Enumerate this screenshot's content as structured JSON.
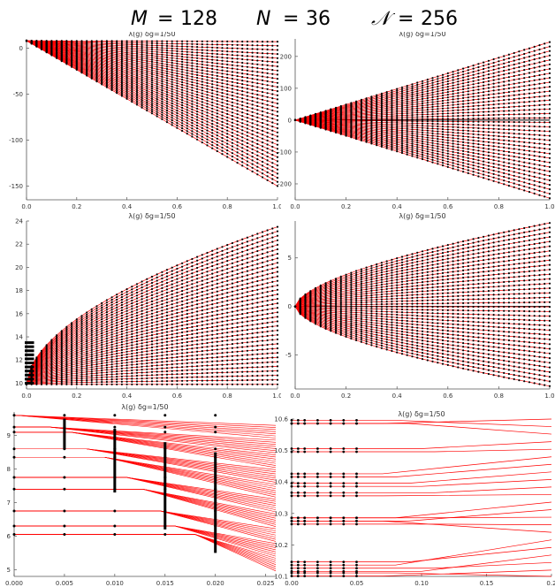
{
  "figure": {
    "title_parts": [
      {
        "sym": "M",
        "val": "128"
      },
      {
        "sym": "N",
        "val": "36"
      },
      {
        "sym": "𝒩",
        "val": "256"
      }
    ],
    "eq": "="
  },
  "colors": {
    "curve": "#ff0000",
    "point": "#000000",
    "axis": "#555555"
  },
  "chart_data": [
    {
      "type": "line",
      "panel_label": "λ(g)   δg=1/50",
      "xlim": [
        0,
        1
      ],
      "ylim": [
        -165,
        10
      ],
      "xticks": [
        0.0,
        0.2,
        0.4,
        0.6,
        0.8,
        1.0
      ],
      "xtick_labels": [
        "0.0",
        "0.2",
        "0.4",
        "0.6",
        "0.8",
        "1.0"
      ],
      "yticks": [
        0,
        -50,
        -100,
        -150
      ],
      "ytick_labels": [
        "0",
        "-50",
        "-100",
        "-150"
      ],
      "zero_line": false,
      "family": {
        "count": 36,
        "y0": 8,
        "slope_min": -1,
        "slope_max": -158,
        "power": 1,
        "dx": 0.02
      }
    },
    {
      "type": "line",
      "panel_label": "λ(g)   δg=1/50",
      "xlim": [
        0,
        1
      ],
      "ylim": [
        -250,
        255
      ],
      "xticks": [
        0.0,
        0.2,
        0.4,
        0.6,
        0.8,
        1.0
      ],
      "xtick_labels": [
        "0.0",
        "0.2",
        "0.4",
        "0.6",
        "0.8",
        "1.0"
      ],
      "yticks": [
        200,
        100,
        0,
        -100,
        -200
      ],
      "ytick_labels": [
        "200",
        "100",
        "0",
        "-100",
        "-200"
      ],
      "zero_line": true,
      "family": {
        "count": 36,
        "y0": 0,
        "slope_min": -245,
        "slope_max": 245,
        "power": 1,
        "dx": 0.02
      }
    },
    {
      "type": "line",
      "panel_label": "λ(g)   δg=1/50",
      "xlim": [
        0,
        1
      ],
      "ylim": [
        9.5,
        24
      ],
      "xticks": [
        0.0,
        0.2,
        0.4,
        0.6,
        0.8,
        1.0
      ],
      "xtick_labels": [
        "0.0",
        "0.2",
        "0.4",
        "0.6",
        "0.8",
        "1.0"
      ],
      "yticks": [
        10,
        12,
        14,
        16,
        18,
        20,
        22,
        24
      ],
      "ytick_labels": [
        "10",
        "12",
        "14",
        "16",
        "18",
        "20",
        "22",
        "24"
      ],
      "zero_line": false,
      "family": {
        "count": 36,
        "y0": 9.9,
        "slope_min": 0,
        "slope_max": 13.6,
        "power": 0.55,
        "dx": 0.02
      }
    },
    {
      "type": "line",
      "panel_label": "λ(g)   δg=1/50",
      "xlim": [
        0,
        1
      ],
      "ylim": [
        -8.5,
        8.8
      ],
      "xticks": [
        0.0,
        0.2,
        0.4,
        0.6,
        0.8,
        1.0
      ],
      "xtick_labels": [
        "0.0",
        "0.2",
        "0.4",
        "0.6",
        "0.8",
        "1.0"
      ],
      "yticks": [
        5,
        0,
        -5
      ],
      "ytick_labels": [
        "5",
        "0",
        "-5"
      ],
      "zero_line": true,
      "family": {
        "count": 36,
        "y0": 0,
        "slope_min": -8.2,
        "slope_max": 8.6,
        "power": 0.6,
        "dx": 0.02
      }
    },
    {
      "type": "line",
      "panel_label": "λ(g)   δg=1/50",
      "xlim": [
        0,
        0.026
      ],
      "ylim": [
        4.8,
        9.7
      ],
      "xticks": [
        0.0,
        0.005,
        0.01,
        0.015,
        0.02,
        0.025
      ],
      "xtick_labels": [
        "0.000",
        "0.005",
        "0.010",
        "0.015",
        "0.020",
        "0.025"
      ],
      "yticks": [
        5,
        6,
        7,
        8,
        9
      ],
      "ytick_labels": [
        "5",
        "6",
        "7",
        "8",
        "9"
      ],
      "zero_line": false,
      "levels": [
        9.6,
        9.25,
        9.1,
        8.6,
        8.35,
        7.75,
        7.4,
        6.75,
        6.3,
        6.05
      ],
      "drop_x": [
        0.0003,
        0.0035,
        0.0056,
        0.0072,
        0.009,
        0.0112,
        0.0128,
        0.0145,
        0.016,
        0.018
      ]
    },
    {
      "type": "line",
      "panel_label": "λ(g)   δg=1/50",
      "xlim": [
        0,
        0.2
      ],
      "ylim": [
        10.1,
        10.6
      ],
      "xticks": [
        0.0,
        0.05,
        0.1,
        0.15,
        0.2
      ],
      "xtick_labels": [
        "0.00",
        "0.05",
        "0.10",
        "0.15",
        "0.2"
      ],
      "yticks": [
        10.1,
        10.2,
        10.3,
        10.4,
        10.5,
        10.6
      ],
      "ytick_labels": [
        "10.1",
        "10.2",
        "10.3",
        "10.4",
        "10.5",
        "10.6"
      ],
      "zero_line": false,
      "clusters": [
        10.59,
        10.5,
        10.42,
        10.39,
        10.36,
        10.28,
        10.27,
        10.14,
        10.12,
        10.105
      ]
    }
  ]
}
